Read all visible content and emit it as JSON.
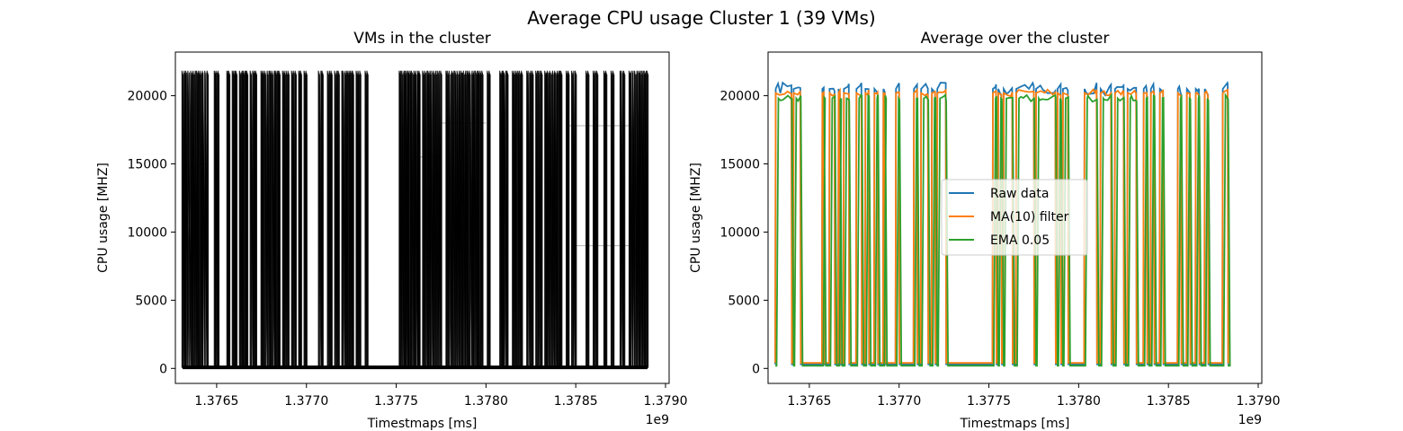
{
  "figure": {
    "suptitle": "Average CPU usage Cluster 1 (39 VMs)"
  },
  "chart_data": [
    {
      "type": "line",
      "title": "VMs in the cluster",
      "xlabel": "Timestmaps [ms]",
      "ylabel": "CPU usage [MHZ]",
      "x_offset_label": "1e9",
      "xlim": [
        1.37627,
        1.37902
      ],
      "ylim": [
        -1100,
        23200
      ],
      "xticks": [
        1.3765,
        1.377,
        1.3775,
        1.378,
        1.3785,
        1.379
      ],
      "xtick_labels": [
        "1.3765",
        "1.3770",
        "1.3775",
        "1.3780",
        "1.3785",
        "1.3790"
      ],
      "yticks": [
        0,
        5000,
        10000,
        15000,
        20000
      ],
      "ytick_labels": [
        "0",
        "5000",
        "10000",
        "15000",
        "20000"
      ],
      "series_color": "#000000",
      "series_alpha": 0.3,
      "vm_count": 39,
      "on_intervals": [
        [
          1.37631,
          1.3764
        ],
        [
          1.37641,
          1.37645
        ],
        [
          1.37649,
          1.37651
        ],
        [
          1.37656,
          1.37657
        ],
        [
          1.37659,
          1.37661
        ],
        [
          1.37663,
          1.37665
        ],
        [
          1.37666,
          1.37667
        ],
        [
          1.37669,
          1.37672
        ],
        [
          1.37675,
          1.37676
        ],
        [
          1.37677,
          1.3768
        ],
        [
          1.37681,
          1.37683
        ],
        [
          1.37684,
          1.37685
        ],
        [
          1.37687,
          1.3769
        ],
        [
          1.37692,
          1.37694
        ],
        [
          1.37696,
          1.37697
        ],
        [
          1.37699,
          1.377
        ],
        [
          1.37707,
          1.37709
        ],
        [
          1.37712,
          1.37714
        ],
        [
          1.37716,
          1.37718
        ],
        [
          1.3772,
          1.37723
        ],
        [
          1.37724,
          1.37726
        ],
        [
          1.37728,
          1.3773
        ],
        [
          1.37733,
          1.37734
        ],
        [
          1.37752,
          1.37757
        ],
        [
          1.37758,
          1.37763
        ],
        [
          1.37765,
          1.37775
        ],
        [
          1.37778,
          1.3779
        ],
        [
          1.37791,
          1.37796
        ],
        [
          1.37797,
          1.37798
        ],
        [
          1.37801,
          1.37802
        ],
        [
          1.37808,
          1.37812
        ],
        [
          1.37815,
          1.37817
        ],
        [
          1.37818,
          1.3782
        ],
        [
          1.37823,
          1.37826
        ],
        [
          1.37828,
          1.37831
        ],
        [
          1.37833,
          1.3784
        ],
        [
          1.37841,
          1.37842
        ],
        [
          1.37845,
          1.37846
        ],
        [
          1.37848,
          1.3785
        ],
        [
          1.37856,
          1.37857
        ],
        [
          1.3786,
          1.37862
        ],
        [
          1.37866,
          1.37867
        ],
        [
          1.3787,
          1.37871
        ],
        [
          1.37875,
          1.37877
        ],
        [
          1.3788,
          1.3789
        ]
      ],
      "on_level": 21700,
      "off_level": 80,
      "faint_levels": [
        [
          1.3764,
          1.37645,
          15000
        ],
        [
          1.3776,
          1.37775,
          15500
        ],
        [
          1.37775,
          1.378,
          18000
        ],
        [
          1.37845,
          1.3788,
          17800
        ],
        [
          1.3785,
          1.3789,
          9000
        ]
      ]
    },
    {
      "type": "line",
      "title": "Average over the cluster",
      "xlabel": "Timestmaps [ms]",
      "ylabel": "CPU usage [MHZ]",
      "x_offset_label": "1e9",
      "xlim": [
        1.37627,
        1.37902
      ],
      "ylim": [
        -1100,
        23200
      ],
      "xticks": [
        1.3765,
        1.377,
        1.3775,
        1.378,
        1.3785,
        1.379
      ],
      "xtick_labels": [
        "1.3765",
        "1.3770",
        "1.3775",
        "1.3780",
        "1.3785",
        "1.3790"
      ],
      "yticks": [
        0,
        5000,
        10000,
        15000,
        20000
      ],
      "ytick_labels": [
        "0",
        "5000",
        "10000",
        "15000",
        "20000"
      ],
      "legend_position": "center",
      "series": [
        {
          "name": "Raw data",
          "color": "#1f77b4",
          "level_on": 20500,
          "level_off": 300
        },
        {
          "name": "MA(10) filter",
          "color": "#ff7f0e",
          "level_on": 20200,
          "level_off": 400
        },
        {
          "name": "EMA 0.05",
          "color": "#2ca02c",
          "level_on": 19800,
          "level_off": 200
        }
      ],
      "on_intervals": [
        [
          1.37631,
          1.3764
        ],
        [
          1.37641,
          1.37645
        ],
        [
          1.37657,
          1.37658
        ],
        [
          1.37661,
          1.37664
        ],
        [
          1.37666,
          1.37667
        ],
        [
          1.37669,
          1.37672
        ],
        [
          1.37676,
          1.37679
        ],
        [
          1.37681,
          1.37683
        ],
        [
          1.37686,
          1.37688
        ],
        [
          1.37691,
          1.37692
        ],
        [
          1.37698,
          1.377
        ],
        [
          1.37708,
          1.3771
        ],
        [
          1.37712,
          1.37716
        ],
        [
          1.37718,
          1.3772
        ],
        [
          1.37721,
          1.37726
        ],
        [
          1.37752,
          1.37754
        ],
        [
          1.37755,
          1.37757
        ],
        [
          1.37758,
          1.37763
        ],
        [
          1.37765,
          1.37775
        ],
        [
          1.37776,
          1.37787
        ],
        [
          1.37788,
          1.3779
        ],
        [
          1.37791,
          1.37794
        ],
        [
          1.37803,
          1.3781
        ],
        [
          1.37812,
          1.37818
        ],
        [
          1.3782,
          1.37825
        ],
        [
          1.37827,
          1.37832
        ],
        [
          1.37836,
          1.37838
        ],
        [
          1.3784,
          1.37842
        ],
        [
          1.37845,
          1.37847
        ],
        [
          1.37855,
          1.37857
        ],
        [
          1.3786,
          1.37862
        ],
        [
          1.37865,
          1.37867
        ],
        [
          1.3787,
          1.37872
        ],
        [
          1.3788,
          1.37883
        ]
      ]
    }
  ]
}
